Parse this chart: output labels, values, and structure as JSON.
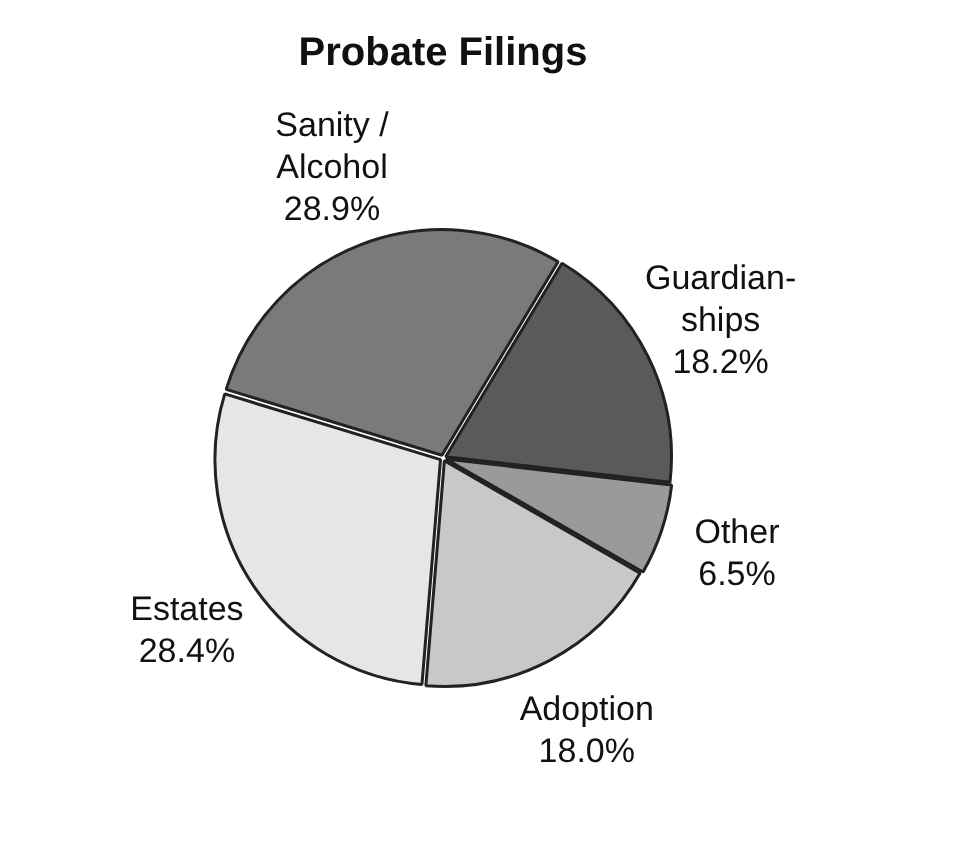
{
  "chart_data": {
    "type": "pie",
    "title": "Probate Filings",
    "categories": [
      "Guardian-\nships",
      "Other",
      "Adoption",
      "Estates",
      "Sanity /\nAlcohol"
    ],
    "values": [
      18.2,
      6.5,
      18.0,
      28.4,
      28.9
    ],
    "value_labels": [
      "18.2%",
      "6.5%",
      "18.0%",
      "28.4%",
      "28.9%"
    ],
    "colors": [
      "#5a5a5a",
      "#9a9a9a",
      "#c8c8c8",
      "#e6e6e6",
      "#7a7a7a"
    ],
    "legend": false
  }
}
